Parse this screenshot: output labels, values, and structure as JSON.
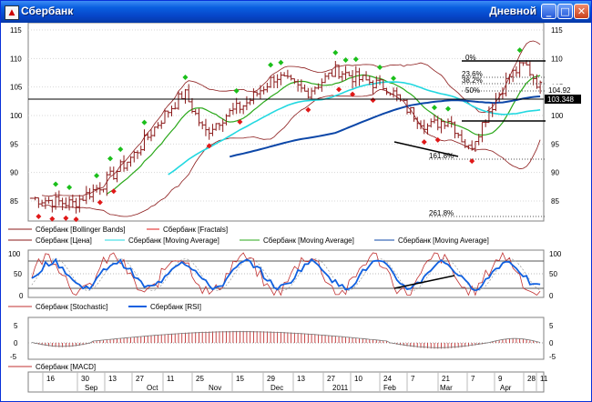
{
  "window": {
    "title_left": "Сбербанк",
    "title_right": "Дневной",
    "icon": "chart-app-icon"
  },
  "controls": {
    "minimize": "_",
    "maximize": "□",
    "close": "✕"
  },
  "colors": {
    "price": "#8b1a1a",
    "bollinger": "#8b1a1a",
    "ma_fast": "#2aa81a",
    "ma_mid": "#22d8e0",
    "ma_slow": "#0c47a8",
    "fractal_up": "#1bbf1b",
    "fractal_down": "#e01818",
    "stoch_k": "#c03030",
    "rsi": "#1060e0",
    "macd": "#c03030"
  },
  "main_axis": {
    "ticks": [
      "115",
      "110",
      "105",
      "100",
      "95",
      "90",
      "85"
    ]
  },
  "price_labels": {
    "last": "104.92",
    "level": "103.348"
  },
  "fibonacci": [
    "0%",
    "23.6%",
    "38.2%",
    "50%",
    "161.8%",
    "261.8%"
  ],
  "legend_main": [
    {
      "text": "Сбербанк [Bollinger Bands]",
      "color": "#8b1a1a"
    },
    {
      "text": "Сбербанк [Fractals]",
      "color": "#e01818"
    },
    {
      "text": "Сбербанк [Цена]",
      "color": "#8b1a1a"
    },
    {
      "text": "Сбербанк [Moving Average]",
      "color": "#22d8e0"
    },
    {
      "text": "Сбербанк [Moving Average]",
      "color": "#2aa81a"
    },
    {
      "text": "Сбербанк [Moving Average]",
      "color": "#0c47a8"
    }
  ],
  "osc_axis": {
    "ticks": [
      "100",
      "50",
      "0"
    ]
  },
  "legend_osc": [
    {
      "text": "Сбербанк [Stochastic]",
      "color": "#c03030"
    },
    {
      "text": "Сбербанк [RSI]",
      "color": "#1060e0"
    }
  ],
  "macd_axis": {
    "ticks": [
      "5",
      "0",
      "-5"
    ]
  },
  "legend_macd": [
    {
      "text": "Сбербанк [MACD]",
      "color": "#c03030"
    }
  ],
  "date_axis": {
    "days": [
      "16",
      "30",
      "13",
      "27",
      "11",
      "25",
      "15",
      "29",
      "13",
      "27",
      "10",
      "24",
      "7",
      "21",
      "7",
      "9",
      "28",
      "11"
    ],
    "months": [
      "Sep",
      "Oct",
      "Nov",
      "Dec",
      "2011",
      "Feb",
      "Mar",
      "Apr"
    ]
  }
}
